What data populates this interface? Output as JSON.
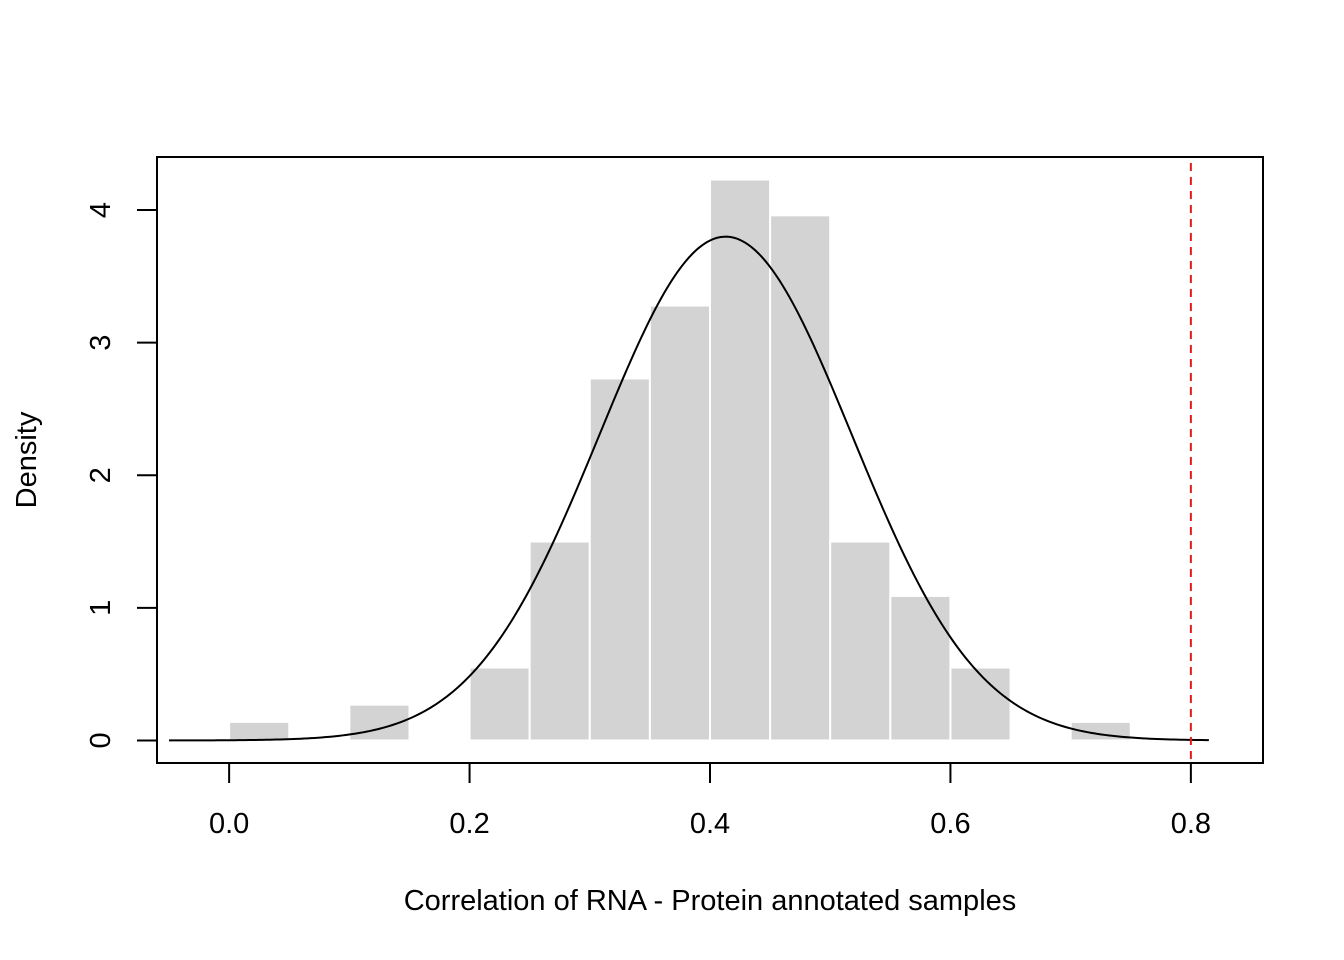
{
  "chart_data": {
    "type": "bar",
    "subtype": "histogram",
    "title": "",
    "xlabel": "Correlation of RNA - Protein annotated samples",
    "ylabel": "Density",
    "xlim": [
      -0.06,
      0.86
    ],
    "ylim": [
      -0.17,
      4.4
    ],
    "x_ticks": [
      {
        "value": 0.0,
        "label": "0.0"
      },
      {
        "value": 0.2,
        "label": "0.2"
      },
      {
        "value": 0.4,
        "label": "0.4"
      },
      {
        "value": 0.6,
        "label": "0.6"
      },
      {
        "value": 0.8,
        "label": "0.8"
      }
    ],
    "y_ticks": [
      {
        "value": 0,
        "label": "0"
      },
      {
        "value": 1,
        "label": "1"
      },
      {
        "value": 2,
        "label": "2"
      },
      {
        "value": 3,
        "label": "3"
      },
      {
        "value": 4,
        "label": "4"
      }
    ],
    "bins": [
      {
        "x0": 0.0,
        "x1": 0.05,
        "density": 0.14
      },
      {
        "x0": 0.05,
        "x1": 0.1,
        "density": 0.0
      },
      {
        "x0": 0.1,
        "x1": 0.15,
        "density": 0.27
      },
      {
        "x0": 0.15,
        "x1": 0.2,
        "density": 0.0
      },
      {
        "x0": 0.2,
        "x1": 0.25,
        "density": 0.55
      },
      {
        "x0": 0.25,
        "x1": 0.3,
        "density": 1.5
      },
      {
        "x0": 0.3,
        "x1": 0.35,
        "density": 2.73
      },
      {
        "x0": 0.35,
        "x1": 0.4,
        "density": 3.28
      },
      {
        "x0": 0.4,
        "x1": 0.45,
        "density": 4.23
      },
      {
        "x0": 0.45,
        "x1": 0.5,
        "density": 3.96
      },
      {
        "x0": 0.5,
        "x1": 0.55,
        "density": 1.5
      },
      {
        "x0": 0.55,
        "x1": 0.6,
        "density": 1.09
      },
      {
        "x0": 0.6,
        "x1": 0.65,
        "density": 0.55
      },
      {
        "x0": 0.65,
        "x1": 0.7,
        "density": 0.0
      },
      {
        "x0": 0.7,
        "x1": 0.75,
        "density": 0.14
      }
    ],
    "density_curve": {
      "type": "normal",
      "mean": 0.413,
      "sd": 0.105,
      "x_range": [
        -0.05,
        0.815
      ]
    },
    "reference_line": {
      "x": 0.8,
      "color": "#e41a1c",
      "style": "dashed"
    },
    "bar_color": "#d3d3d3",
    "bar_border_color": "#ffffff",
    "curve_color": "#000000",
    "grid": false,
    "legend": "none"
  }
}
